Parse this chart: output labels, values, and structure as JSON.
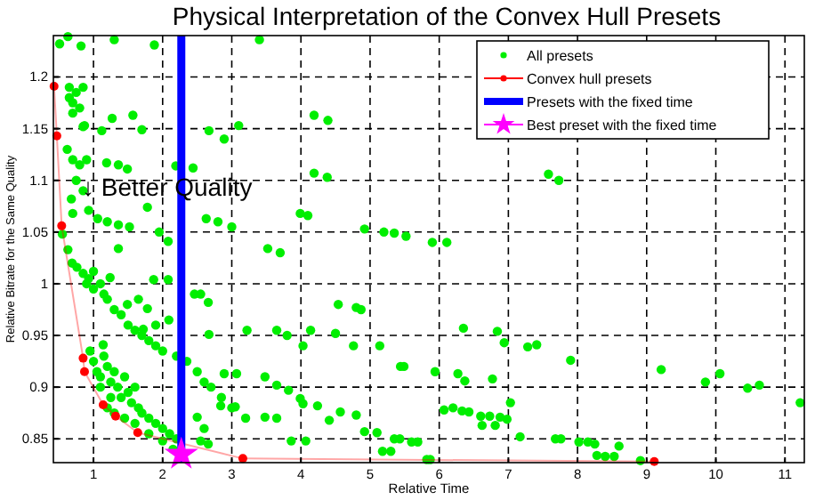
{
  "chart_data": {
    "type": "scatter",
    "title": "Physical Interpretation of the Convex Hull Presets",
    "xlabel": "Relative Time",
    "ylabel": "Relative Bitrate for the Same Quality",
    "annotations": [
      "↓ Better Quality"
    ],
    "xlim": [
      0.42,
      11.28
    ],
    "ylim": [
      0.827,
      1.24
    ],
    "xticks": [
      1,
      2,
      3,
      4,
      5,
      6,
      7,
      8,
      9,
      10,
      11
    ],
    "yticks": [
      0.85,
      0.9,
      0.95,
      1,
      1.05,
      1.1,
      1.15,
      1.2
    ],
    "grid": true,
    "legend": "top right",
    "series": [
      {
        "name": "All presets",
        "marker": "circle",
        "color": "#00ee00",
        "x": [
          0.51,
          0.63,
          0.82,
          1.3,
          1.88,
          3.4,
          0.65,
          0.7,
          0.75,
          0.8,
          0.85,
          0.7,
          0.65,
          0.85,
          0.87,
          1.27,
          1.12,
          1.57,
          1.7,
          2.67,
          2.89,
          3.1,
          4.19,
          4.39,
          0.62,
          0.7,
          0.8,
          0.75,
          0.9,
          0.85,
          1.19,
          1.36,
          1.49,
          2.19,
          2.44,
          4.19,
          4.38,
          0.68,
          0.7,
          0.93,
          1.06,
          1.2,
          1.36,
          1.52,
          1.78,
          1.95,
          2.63,
          2.8,
          3.0,
          3.99,
          4.1,
          4.92,
          5.2,
          5.35,
          5.52,
          5.9,
          6.11,
          7.58,
          7.73,
          0.55,
          0.63,
          0.69,
          1.36,
          2.08,
          3.52,
          3.7,
          0.76,
          0.85,
          0.93,
          1.0,
          1.24,
          1.87,
          2.08,
          0.9,
          1.0,
          1.1,
          1.15,
          1.2,
          1.3,
          1.4,
          1.5,
          1.6,
          1.7,
          1.8,
          1.9,
          2.0,
          2.2,
          2.35,
          2.5,
          2.6,
          2.7,
          2.85,
          3.0,
          3.2,
          2.46,
          2.55,
          2.66,
          1.49,
          1.65,
          1.78,
          1.72,
          1.9,
          2.09,
          2.67,
          3.22,
          3.65,
          3.8,
          4.14,
          4.03,
          4.54,
          4.8,
          4.87,
          4.5,
          5.14,
          4.76,
          1.14,
          1.0,
          1.05,
          1.1,
          1.15,
          1.2,
          1.25,
          1.3,
          1.35,
          1.4,
          1.45,
          1.5,
          1.55,
          1.6,
          1.65,
          1.7,
          1.8,
          1.9,
          2.0,
          2.1,
          2.2,
          1.2,
          1.3,
          1.45,
          1.6,
          1.8,
          2.0,
          2.15,
          0.95,
          1.1,
          1.25,
          2.89,
          3.07,
          3.48,
          3.65,
          3.82,
          3.99,
          4.03,
          4.24,
          4.57,
          4.8,
          2.84,
          3.05,
          3.48,
          3.65,
          4.41,
          4.92,
          5.1,
          3.86,
          4.07,
          2.55,
          2.66,
          5.18,
          5.35,
          2.5,
          2.6,
          5.43,
          5.6,
          5.69,
          5.44,
          5.49,
          5.94,
          6.07,
          6.2,
          6.33,
          6.43,
          6.6,
          6.62,
          6.73,
          6.81,
          6.88,
          6.98,
          7.03,
          7.17,
          6.27,
          6.37,
          6.77,
          6.35,
          6.84,
          6.94,
          7.28,
          7.41,
          7.9,
          7.68,
          7.76,
          8.02,
          8.15,
          8.25,
          8.28,
          8.4,
          8.53,
          8.6,
          8.91,
          9.21,
          9.85,
          10.06,
          10.46,
          10.63,
          11.22,
          5.82,
          5.87,
          5.3
        ],
        "values": [
          1.232,
          1.239,
          1.23,
          1.236,
          1.231,
          1.236,
          1.18,
          1.175,
          1.185,
          1.17,
          1.19,
          1.165,
          1.19,
          1.152,
          1.153,
          1.16,
          1.148,
          1.163,
          1.149,
          1.148,
          1.14,
          1.153,
          1.163,
          1.158,
          1.13,
          1.12,
          1.115,
          1.1,
          1.12,
          1.09,
          1.117,
          1.115,
          1.111,
          1.114,
          1.112,
          1.107,
          1.103,
          1.082,
          1.068,
          1.071,
          1.063,
          1.06,
          1.057,
          1.055,
          1.074,
          1.05,
          1.063,
          1.06,
          1.055,
          1.068,
          1.066,
          1.053,
          1.05,
          1.049,
          1.046,
          1.04,
          1.04,
          1.106,
          1.1,
          1.048,
          1.033,
          1.02,
          1.034,
          1.041,
          1.034,
          1.03,
          1.016,
          1.01,
          1.005,
          1.012,
          1.006,
          1.004,
          1.004,
          1.0,
          0.995,
          1.0,
          0.99,
          0.985,
          0.975,
          0.97,
          0.96,
          0.955,
          0.95,
          0.945,
          0.94,
          0.935,
          0.93,
          0.925,
          0.915,
          0.905,
          0.9,
          0.89,
          0.88,
          0.87,
          0.99,
          0.99,
          0.982,
          0.98,
          0.985,
          0.976,
          0.956,
          0.96,
          0.965,
          0.951,
          0.955,
          0.955,
          0.95,
          0.955,
          0.94,
          0.98,
          0.977,
          0.975,
          0.952,
          0.94,
          0.94,
          0.941,
          0.925,
          0.915,
          0.91,
          0.93,
          0.92,
          0.905,
          0.915,
          0.9,
          0.89,
          0.91,
          0.895,
          0.885,
          0.9,
          0.88,
          0.875,
          0.87,
          0.865,
          0.86,
          0.855,
          0.85,
          0.88,
          0.875,
          0.87,
          0.865,
          0.855,
          0.848,
          0.84,
          0.935,
          0.9,
          0.89,
          0.913,
          0.913,
          0.91,
          0.902,
          0.897,
          0.889,
          0.884,
          0.882,
          0.876,
          0.873,
          0.882,
          0.881,
          0.871,
          0.87,
          0.868,
          0.857,
          0.856,
          0.848,
          0.848,
          0.848,
          0.845,
          0.838,
          0.85,
          0.871,
          0.86,
          0.85,
          0.847,
          0.847,
          0.92,
          0.92,
          0.915,
          0.878,
          0.88,
          0.877,
          0.876,
          0.872,
          0.863,
          0.872,
          0.863,
          0.871,
          0.869,
          0.885,
          0.852,
          0.913,
          0.906,
          0.908,
          0.957,
          0.954,
          0.943,
          0.939,
          0.941,
          0.926,
          0.85,
          0.85,
          0.847,
          0.847,
          0.845,
          0.834,
          0.833,
          0.833,
          0.843,
          0.829,
          0.917,
          0.905,
          0.913,
          0.899,
          0.902,
          0.885,
          0.83,
          0.83,
          0.838
        ]
      },
      {
        "name": "Convex hull presets",
        "type": "line",
        "marker": "circle",
        "color": "#ff0000",
        "x": [
          0.43,
          0.47,
          0.54,
          0.85,
          0.87,
          1.14,
          1.32,
          1.64,
          2.27,
          3.16,
          9.11
        ],
        "values": [
          1.191,
          1.143,
          1.056,
          0.928,
          0.915,
          0.883,
          0.872,
          0.856,
          null,
          0.831,
          0.828
        ]
      },
      {
        "name": "Presets with the fixed time",
        "type": "line",
        "marker": "none",
        "color": "#0000ff",
        "x": [
          2.27,
          2.27
        ],
        "values": [
          0.827,
          1.24
        ]
      },
      {
        "name": "Best preset with the fixed time",
        "marker": "star",
        "color": "#ff00ff",
        "x": [
          2.27
        ],
        "values": [
          0.835
        ]
      }
    ]
  }
}
